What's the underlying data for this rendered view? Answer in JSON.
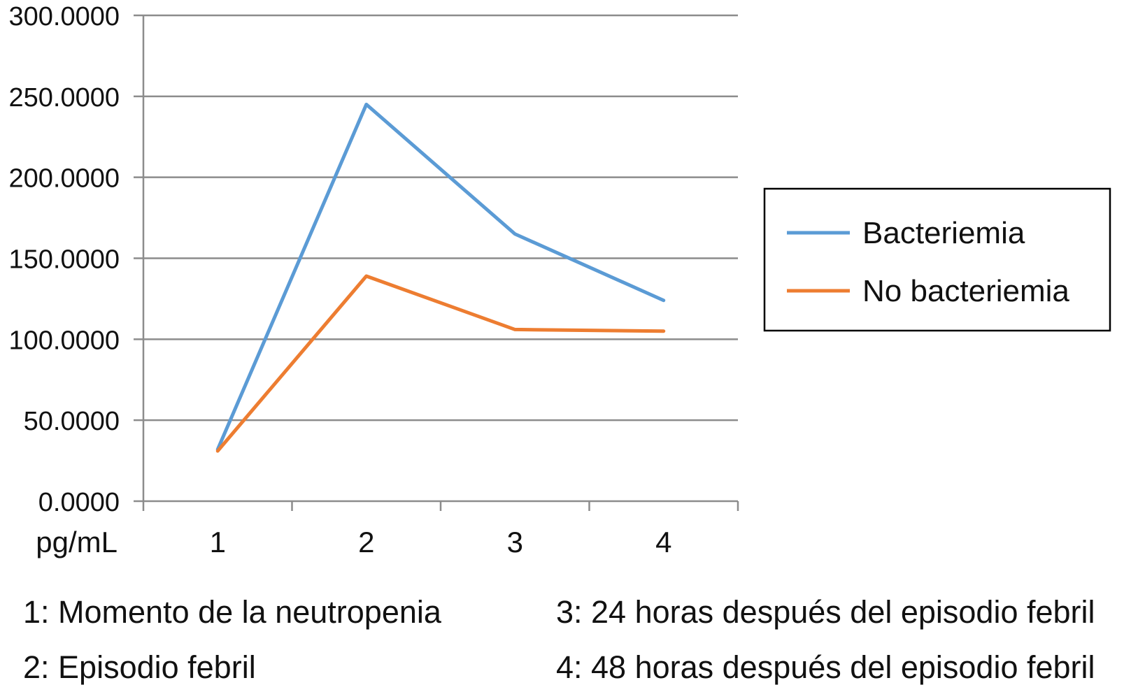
{
  "chart_data": {
    "type": "line",
    "categories": [
      "1",
      "2",
      "3",
      "4"
    ],
    "series": [
      {
        "name": "Bacteriemia",
        "color": "#5b9bd5",
        "values": [
          32,
          245,
          165,
          124
        ]
      },
      {
        "name": "No bacteriemia",
        "color": "#ed7d31",
        "values": [
          31,
          139,
          106,
          105
        ]
      }
    ],
    "ylim": [
      0,
      300
    ],
    "yticks": [
      "0.0000",
      "50.0000",
      "100.0000",
      "150.0000",
      "200.0000",
      "250.0000",
      "300.0000"
    ],
    "ylabel": "pg/mL",
    "grid": true,
    "legend_position": "right"
  },
  "notes": {
    "n1": "1: Momento de la neutropenia",
    "n2": "2: Episodio febril",
    "n3": "3: 24 horas después del episodio febril",
    "n4": "4: 48 horas después del episodio febril"
  }
}
